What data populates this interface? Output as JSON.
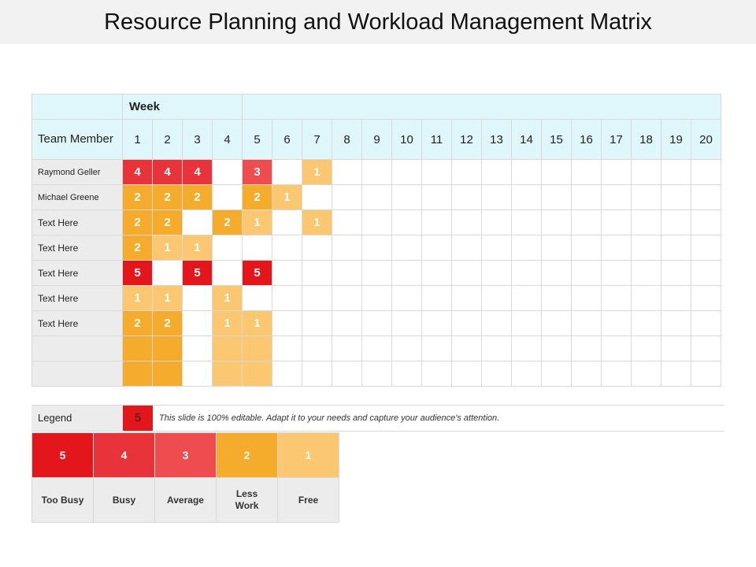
{
  "title": "Resource Planning and Workload Management Matrix",
  "week_header": "Week",
  "team_member_header": "Team Member",
  "weeks": [
    "1",
    "2",
    "3",
    "4",
    "5",
    "6",
    "7",
    "8",
    "9",
    "10",
    "11",
    "12",
    "13",
    "14",
    "15",
    "16",
    "17",
    "18",
    "19",
    "20"
  ],
  "rows": [
    {
      "name": "Raymond Geller",
      "cells": [
        "4",
        "4",
        "4",
        "",
        "3",
        "",
        "1",
        "",
        "",
        "",
        "",
        "",
        "",
        "",
        "",
        "",
        "",
        "",
        "",
        ""
      ]
    },
    {
      "name": "Michael Greene",
      "cells": [
        "2",
        "2",
        "2",
        "",
        "2",
        "1",
        "",
        "",
        "",
        "",
        "",
        "",
        "",
        "",
        "",
        "",
        "",
        "",
        "",
        ""
      ]
    },
    {
      "name": "Text Here",
      "cells": [
        "2",
        "2",
        "",
        "2",
        "1",
        "",
        "1",
        "",
        "",
        "",
        "",
        "",
        "",
        "",
        "",
        "",
        "",
        "",
        "",
        ""
      ]
    },
    {
      "name": "Text Here",
      "cells": [
        "2",
        "1",
        "1",
        "",
        "",
        "",
        "",
        "",
        "",
        "",
        "",
        "",
        "",
        "",
        "",
        "",
        "",
        "",
        "",
        ""
      ]
    },
    {
      "name": "Text Here",
      "cells": [
        "5",
        "",
        "5",
        "",
        "5",
        "",
        "",
        "",
        "",
        "",
        "",
        "",
        "",
        "",
        "",
        "",
        "",
        "",
        "",
        ""
      ]
    },
    {
      "name": "Text Here",
      "cells": [
        "1",
        "1",
        "",
        "1",
        "",
        "",
        "",
        "",
        "",
        "",
        "",
        "",
        "",
        "",
        "",
        "",
        "",
        "",
        "",
        ""
      ]
    },
    {
      "name": "Text Here",
      "cells": [
        "2",
        "2",
        "",
        "1",
        "1",
        "",
        "",
        "",
        "",
        "",
        "",
        "",
        "",
        "",
        "",
        "",
        "",
        "",
        "",
        ""
      ]
    },
    {
      "name": "",
      "cells": [
        "2",
        "2",
        "",
        "1",
        "1",
        "",
        "",
        "",
        "",
        "",
        "",
        "",
        "",
        "",
        "",
        "",
        "",
        "",
        "",
        ""
      ],
      "show_values": false
    },
    {
      "name": "",
      "cells": [
        "2",
        "2",
        "",
        "1",
        "1",
        "",
        "",
        "",
        "",
        "",
        "",
        "",
        "",
        "",
        "",
        "",
        "",
        "",
        "",
        ""
      ],
      "show_values": false
    }
  ],
  "level_colors": {
    "5": "#e2161b",
    "4": "#e8333a",
    "3": "#ee4c4f",
    "2": "#f5ab2c",
    "1": "#fbc770"
  },
  "legend": {
    "label": "Legend",
    "sample_value": "5",
    "note": "This slide is 100% editable. Adapt it to your needs and capture your audience's attention."
  },
  "scale": [
    {
      "value": "5",
      "label": "Too Busy"
    },
    {
      "value": "4",
      "label": "Busy"
    },
    {
      "value": "3",
      "label": "Average"
    },
    {
      "value": "2",
      "label": "Less Work"
    },
    {
      "value": "1",
      "label": "Free"
    }
  ]
}
